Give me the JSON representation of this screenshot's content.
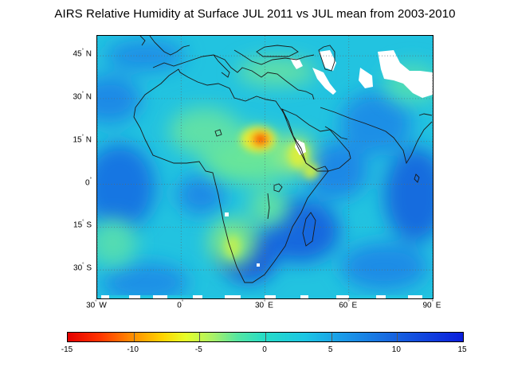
{
  "title": "AIRS Relative Humidity at Surface JUL 2011 vs JUL mean from 2003-2010",
  "map": {
    "extent_lon": [
      -30,
      90
    ],
    "extent_lat": [
      -40,
      52
    ],
    "lat_ticks": [
      {
        "value": 45,
        "deg": "45",
        "hem": "N"
      },
      {
        "value": 30,
        "deg": "30",
        "hem": "N"
      },
      {
        "value": 15,
        "deg": "15",
        "hem": "N"
      },
      {
        "value": 0,
        "deg": "0",
        "hem": ""
      },
      {
        "value": -15,
        "deg": "15",
        "hem": "S"
      },
      {
        "value": -30,
        "deg": "30",
        "hem": "S"
      }
    ],
    "lon_ticks": [
      {
        "value": -30,
        "deg": "30",
        "hem": "W"
      },
      {
        "value": 0,
        "deg": "0",
        "hem": ""
      },
      {
        "value": 30,
        "deg": "30",
        "hem": "E"
      },
      {
        "value": 60,
        "deg": "60",
        "hem": "E"
      },
      {
        "value": 90,
        "deg": "90",
        "hem": "E"
      }
    ],
    "gridlines": "dotted",
    "anomaly_features": [
      {
        "type": "dry",
        "lon": 29,
        "lat": 15.5,
        "value": -14
      },
      {
        "type": "dry",
        "lon": 25,
        "lat": 13,
        "value": -8
      },
      {
        "type": "dry",
        "lon": 37,
        "lat": 18,
        "value": -7
      },
      {
        "type": "dry",
        "lon": 41,
        "lat": 12,
        "value": -7
      },
      {
        "type": "dry",
        "lon": 15,
        "lat": 20,
        "value": -5
      },
      {
        "type": "dry",
        "lon": 24,
        "lat": -24,
        "value": -6
      },
      {
        "type": "dry",
        "lon": 27,
        "lat": -12,
        "value": -4
      },
      {
        "type": "dry",
        "lon": 8,
        "lat": 35,
        "value": -3
      },
      {
        "type": "moist",
        "lon": -22,
        "lat": -5,
        "value": 9
      },
      {
        "type": "moist",
        "lon": 34,
        "lat": -27,
        "value": 10
      },
      {
        "type": "moist",
        "lon": 48,
        "lat": -20,
        "value": 8
      },
      {
        "type": "moist",
        "lon": 85,
        "lat": 0,
        "value": 7
      },
      {
        "type": "moist",
        "lon": -25,
        "lat": 30,
        "value": 6
      },
      {
        "type": "moist",
        "lon": 55,
        "lat": 10,
        "value": 6
      },
      {
        "type": "moist",
        "lon": 20,
        "lat": 3,
        "value": 6
      }
    ],
    "missing_data_color": "#ffffff"
  },
  "colorbar": {
    "min": -15,
    "max": 15,
    "labels": [
      "-15",
      "-10",
      "-5",
      "0",
      "5",
      "10",
      "15"
    ],
    "colors": [
      "#e40000",
      "#ff8a00",
      "#ffd400",
      "#a6f06a",
      "#25dcc8",
      "#1a98e8",
      "#0a1edc"
    ]
  }
}
